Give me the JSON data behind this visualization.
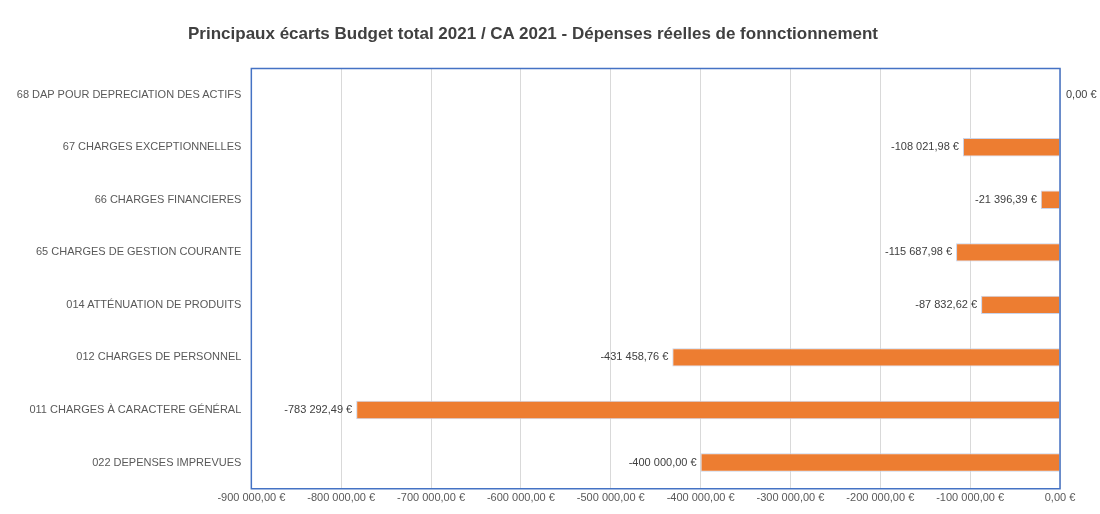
{
  "chart_data": {
    "type": "bar",
    "orientation": "horizontal",
    "title": "Principaux écarts Budget total 2021 / CA 2021 - Dépenses réelles de fonnctionnement",
    "categories": [
      "68 DAP POUR DEPRECIATION DES ACTIFS",
      "67 CHARGES EXCEPTIONNELLES",
      "66 CHARGES FINANCIERES",
      "65 CHARGES DE GESTION COURANTE",
      "014 ATTÉNUATION DE PRODUITS",
      "012 CHARGES DE PERSONNEL",
      "011 CHARGES À CARACTERE GÉNÉRAL",
      "022 DEPENSES IMPREVUES"
    ],
    "values": [
      0,
      -108021.98,
      -21396.39,
      -115687.98,
      -87832.62,
      -431458.76,
      -783292.49,
      -400000
    ],
    "value_labels": [
      "0,00 €",
      "-108 021,98 €",
      "-21 396,39 €",
      "-115 687,98 €",
      "-87 832,62 €",
      "-431 458,76 €",
      "-783 292,49 €",
      "-400 000,00 €"
    ],
    "color": "#ed7d31",
    "xlim": [
      -900000,
      0
    ],
    "xticks": [
      {
        "value": -900000,
        "label": "-900 000,00 €"
      },
      {
        "value": -800000,
        "label": "-800 000,00 €"
      },
      {
        "value": -700000,
        "label": "-700 000,00 €"
      },
      {
        "value": -600000,
        "label": "-600 000,00 €"
      },
      {
        "value": -500000,
        "label": "-500 000,00 €"
      },
      {
        "value": -400000,
        "label": "-400 000,00 €"
      },
      {
        "value": -300000,
        "label": "-300 000,00 €"
      },
      {
        "value": -200000,
        "label": "-200 000,00 €"
      },
      {
        "value": -100000,
        "label": "-100 000,00 €"
      },
      {
        "value": 0,
        "label": "0,00 €"
      }
    ],
    "grid": "x",
    "legend": false
  }
}
